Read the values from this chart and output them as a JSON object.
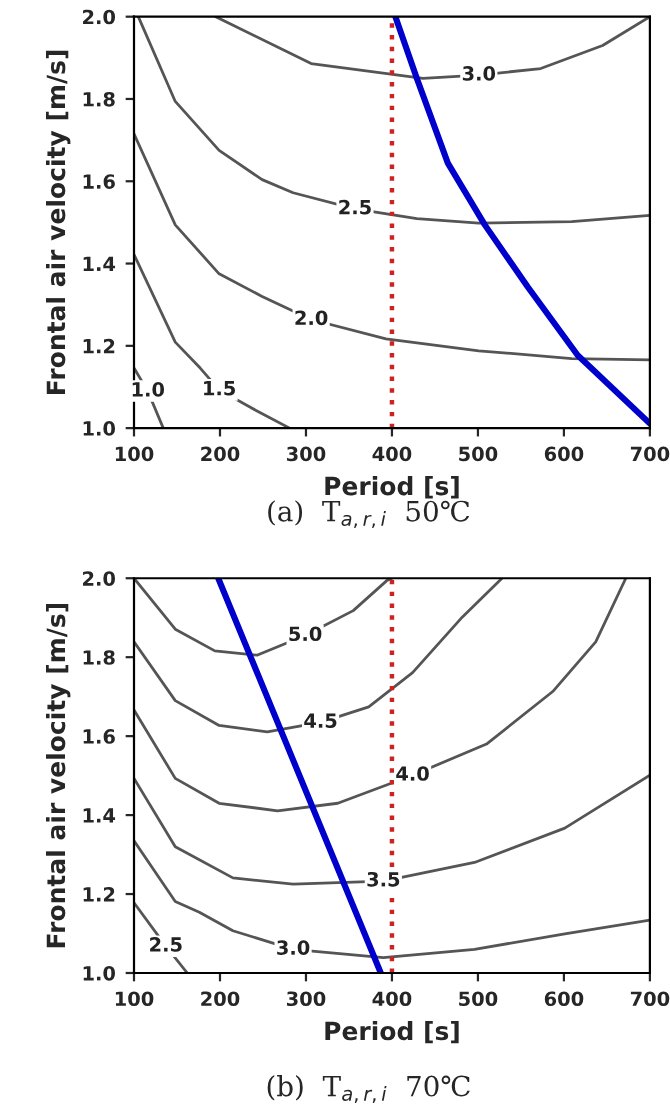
{
  "chart_data": [
    {
      "type": "line",
      "xlabel": "Period [s]",
      "ylabel": "Frontal air velocity [m/s]",
      "annotations": [
        "(a)  T$_{a,r,i}$  50℃"
      ],
      "xlim": [
        100,
        700
      ],
      "ylim": [
        1.0,
        2.0
      ],
      "xticks": [
        100,
        200,
        300,
        400,
        500,
        600,
        700
      ],
      "yticks": [
        {
          "value": 1.0,
          "label": "1.0"
        },
        {
          "value": 1.2,
          "label": "1.2"
        },
        {
          "value": 1.4,
          "label": "1.4"
        },
        {
          "value": 1.6,
          "label": "1.6"
        },
        {
          "value": 1.8,
          "label": "1.8"
        },
        {
          "value": 2.0,
          "label": "2.0"
        }
      ],
      "grid": false,
      "legend": false,
      "ref_lines": [
        {
          "axis": "x",
          "value": 400,
          "color": "#cc2222",
          "line_style": "dotted"
        }
      ],
      "series": [
        {
          "name": "3.0",
          "color": "#555555",
          "x": [
            195,
            306,
            436,
            501,
            573,
            645,
            700
          ],
          "values": [
            2.0,
            1.886,
            1.85,
            1.858,
            1.874,
            1.93,
            2.0
          ]
        },
        {
          "name": "2.5",
          "color": "#555555",
          "x": [
            105,
            148,
            199,
            249,
            285,
            357,
            429,
            501,
            609,
            700
          ],
          "values": [
            2.0,
            1.794,
            1.675,
            1.604,
            1.572,
            1.533,
            1.509,
            1.498,
            1.502,
            1.517
          ]
        },
        {
          "name": "2.0",
          "color": "#555555",
          "x": [
            100,
            148,
            199,
            249,
            306,
            393,
            501,
            609,
            700
          ],
          "values": [
            1.715,
            1.494,
            1.375,
            1.32,
            1.264,
            1.217,
            1.188,
            1.169,
            1.166
          ]
        },
        {
          "name": "1.5",
          "color": "#555555",
          "x": [
            100,
            148,
            177,
            199,
            242,
            281
          ],
          "values": [
            1.422,
            1.209,
            1.146,
            1.093,
            1.043,
            1.0
          ]
        },
        {
          "name": "1.0",
          "color": "#555555",
          "x": [
            100,
            116,
            134
          ],
          "values": [
            1.146,
            1.09,
            1.0
          ]
        },
        {
          "color": "#0000cc",
          "x": [
            404,
            429,
            465,
            508,
            558,
            616,
            700
          ],
          "values": [
            2.0,
            1.85,
            1.644,
            1.494,
            1.343,
            1.177,
            1.011
          ]
        }
      ]
    },
    {
      "type": "line",
      "xlabel": "Period [s]",
      "ylabel": "Frontal air velocity [m/s]",
      "annotations": [
        "(b)  T$_{a,r,i}$  70℃"
      ],
      "xlim": [
        100,
        700
      ],
      "ylim": [
        1.0,
        2.0
      ],
      "xticks": [
        100,
        200,
        300,
        400,
        500,
        600,
        700
      ],
      "yticks": [
        {
          "value": 1.0,
          "label": "1.0"
        },
        {
          "value": 1.2,
          "label": "1.2"
        },
        {
          "value": 1.4,
          "label": "1.4"
        },
        {
          "value": 1.6,
          "label": "1.6"
        },
        {
          "value": 1.8,
          "label": "1.8"
        },
        {
          "value": 2.0,
          "label": "2.0"
        }
      ],
      "grid": false,
      "legend": false,
      "ref_lines": [
        {
          "axis": "x",
          "value": 400,
          "color": "#cc2222",
          "line_style": "dotted"
        }
      ],
      "series": [
        {
          "name": "5.0",
          "color": "#555555",
          "x": [
            100,
            148,
            194,
            243,
            299,
            355,
            394,
            400
          ],
          "values": [
            2.0,
            1.871,
            1.816,
            1.805,
            1.855,
            1.918,
            1.994,
            2.0
          ]
        },
        {
          "name": "4.5",
          "color": "#555555",
          "x": [
            100,
            148,
            199,
            255,
            317,
            373,
            424,
            482,
            528
          ],
          "values": [
            1.839,
            1.69,
            1.627,
            1.611,
            1.635,
            1.674,
            1.761,
            1.902,
            2.0
          ]
        },
        {
          "name": "4.0",
          "color": "#555555",
          "x": [
            100,
            148,
            199,
            267,
            337,
            424,
            510,
            587,
            637,
            672
          ],
          "values": [
            1.666,
            1.493,
            1.43,
            1.411,
            1.43,
            1.501,
            1.58,
            1.713,
            1.839,
            2.0
          ]
        },
        {
          "name": "3.5",
          "color": "#555555",
          "x": [
            100,
            148,
            215,
            285,
            390,
            496,
            601,
            700
          ],
          "values": [
            1.493,
            1.32,
            1.241,
            1.225,
            1.233,
            1.28,
            1.367,
            1.501
          ]
        },
        {
          "name": "3.0",
          "color": "#555555",
          "x": [
            100,
            148,
            176,
            215,
            285,
            390,
            496,
            601,
            700
          ],
          "values": [
            1.335,
            1.181,
            1.154,
            1.107,
            1.06,
            1.039,
            1.06,
            1.099,
            1.134
          ]
        },
        {
          "name": "2.5",
          "color": "#555555",
          "x": [
            100,
            137,
            162
          ],
          "values": [
            1.178,
            1.068,
            1.0
          ]
        },
        {
          "color": "#0000cc",
          "x": [
            198,
            387
          ],
          "values": [
            2.0,
            1.0
          ]
        }
      ]
    }
  ]
}
